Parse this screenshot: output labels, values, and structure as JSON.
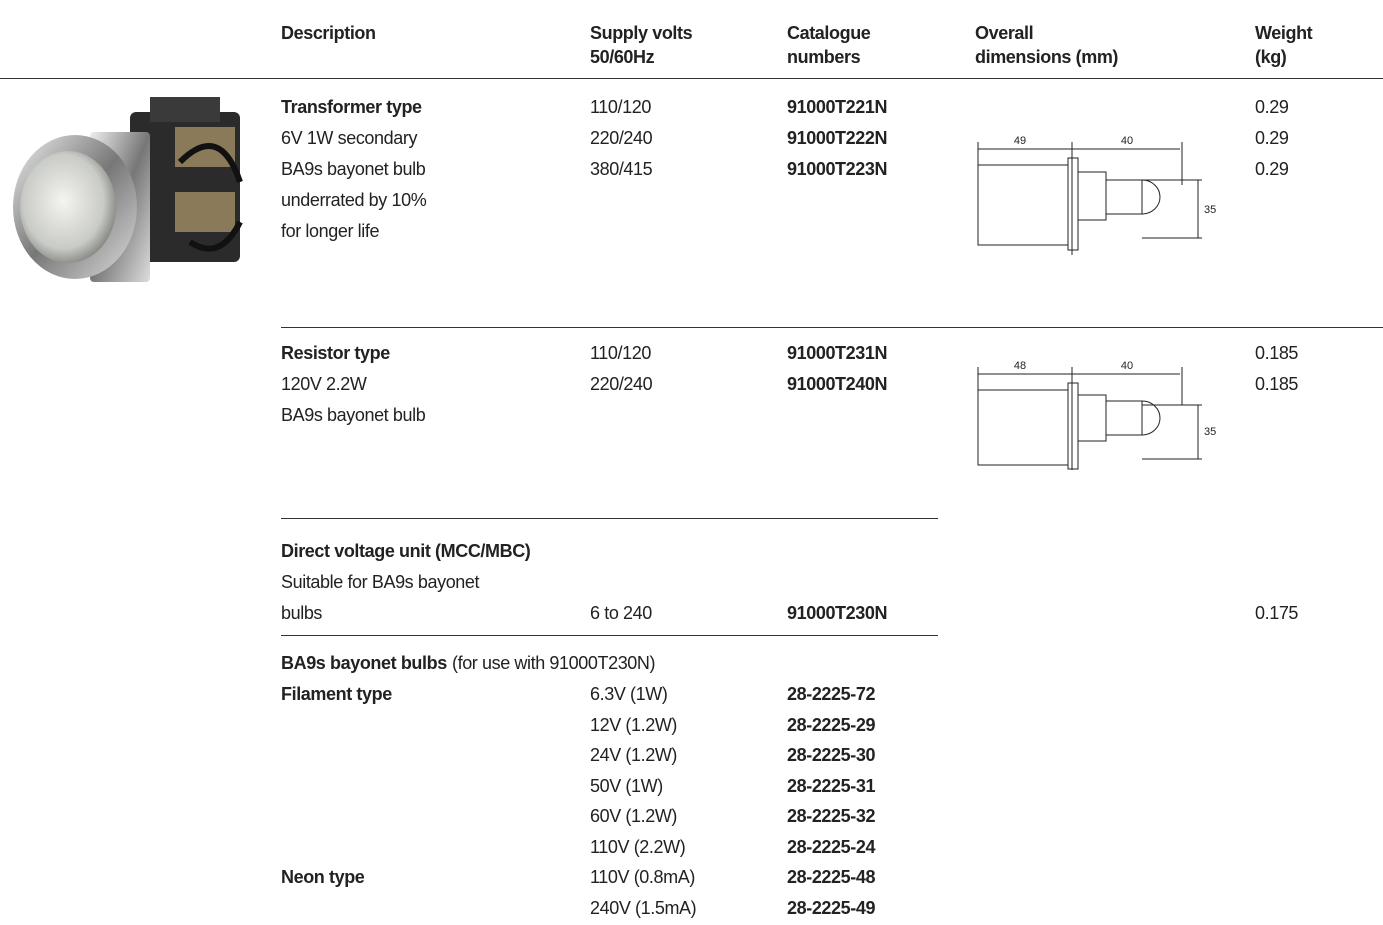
{
  "header": {
    "columns": [
      [
        "Description"
      ],
      [
        "Supply volts",
        "50/60Hz"
      ],
      [
        "Catalogue",
        "numbers"
      ],
      [
        "Overall",
        "dimensions (mm)"
      ],
      [
        "Weight",
        "(kg)"
      ]
    ]
  },
  "rows": [
    {
      "title": "Transformer type",
      "lines": [
        "6V 1W secondary",
        "BA9s bayonet bulb",
        "underrated by 10%",
        "for longer life"
      ],
      "volts": [
        "110/120",
        "220/240",
        "380/415"
      ],
      "catalogue": [
        "91000T221N",
        "91000T222N",
        "91000T223N"
      ],
      "weights": [
        0.29,
        0.29,
        0.29
      ],
      "dimensions": [
        49,
        40,
        35
      ]
    },
    {
      "title": "Resistor type",
      "lines": [
        "120V 2.2W",
        "BA9s bayonet bulb"
      ],
      "volts": [
        "110/120",
        "220/240"
      ],
      "catalogue": [
        "91000T231N",
        "91000T240N"
      ],
      "weights": [
        0.185,
        0.185
      ],
      "dimensions": [
        48,
        40,
        35
      ]
    },
    {
      "title": "Direct voltage unit (MCC/MBC)",
      "lines": [
        "Suitable for BA9s bayonet",
        "bulbs"
      ],
      "volts": [
        "6 to 240"
      ],
      "catalogue": [
        "91000T230N"
      ],
      "weights": [
        0.175
      ]
    }
  ],
  "bulbs": {
    "title": "BA9s bayonet bulbs",
    "note": "(for use with 91000T230N)",
    "groups": [
      {
        "name": "Filament type",
        "items": [
          {
            "rating": "6.3V (1W)",
            "catalogue": "28-2225-72"
          },
          {
            "rating": "12V (1.2W)",
            "catalogue": "28-2225-29"
          },
          {
            "rating": "24V (1.2W)",
            "catalogue": "28-2225-30"
          },
          {
            "rating": "50V (1W)",
            "catalogue": "28-2225-31"
          },
          {
            "rating": "60V (1.2W)",
            "catalogue": "28-2225-32"
          },
          {
            "rating": "110V (2.2W)",
            "catalogue": "28-2225-24"
          }
        ]
      },
      {
        "name": "Neon type",
        "items": [
          {
            "rating": "110V (0.8mA)",
            "catalogue": "28-2225-48"
          },
          {
            "rating": "240V (1.5mA)",
            "catalogue": "28-2225-49"
          }
        ]
      }
    ]
  }
}
